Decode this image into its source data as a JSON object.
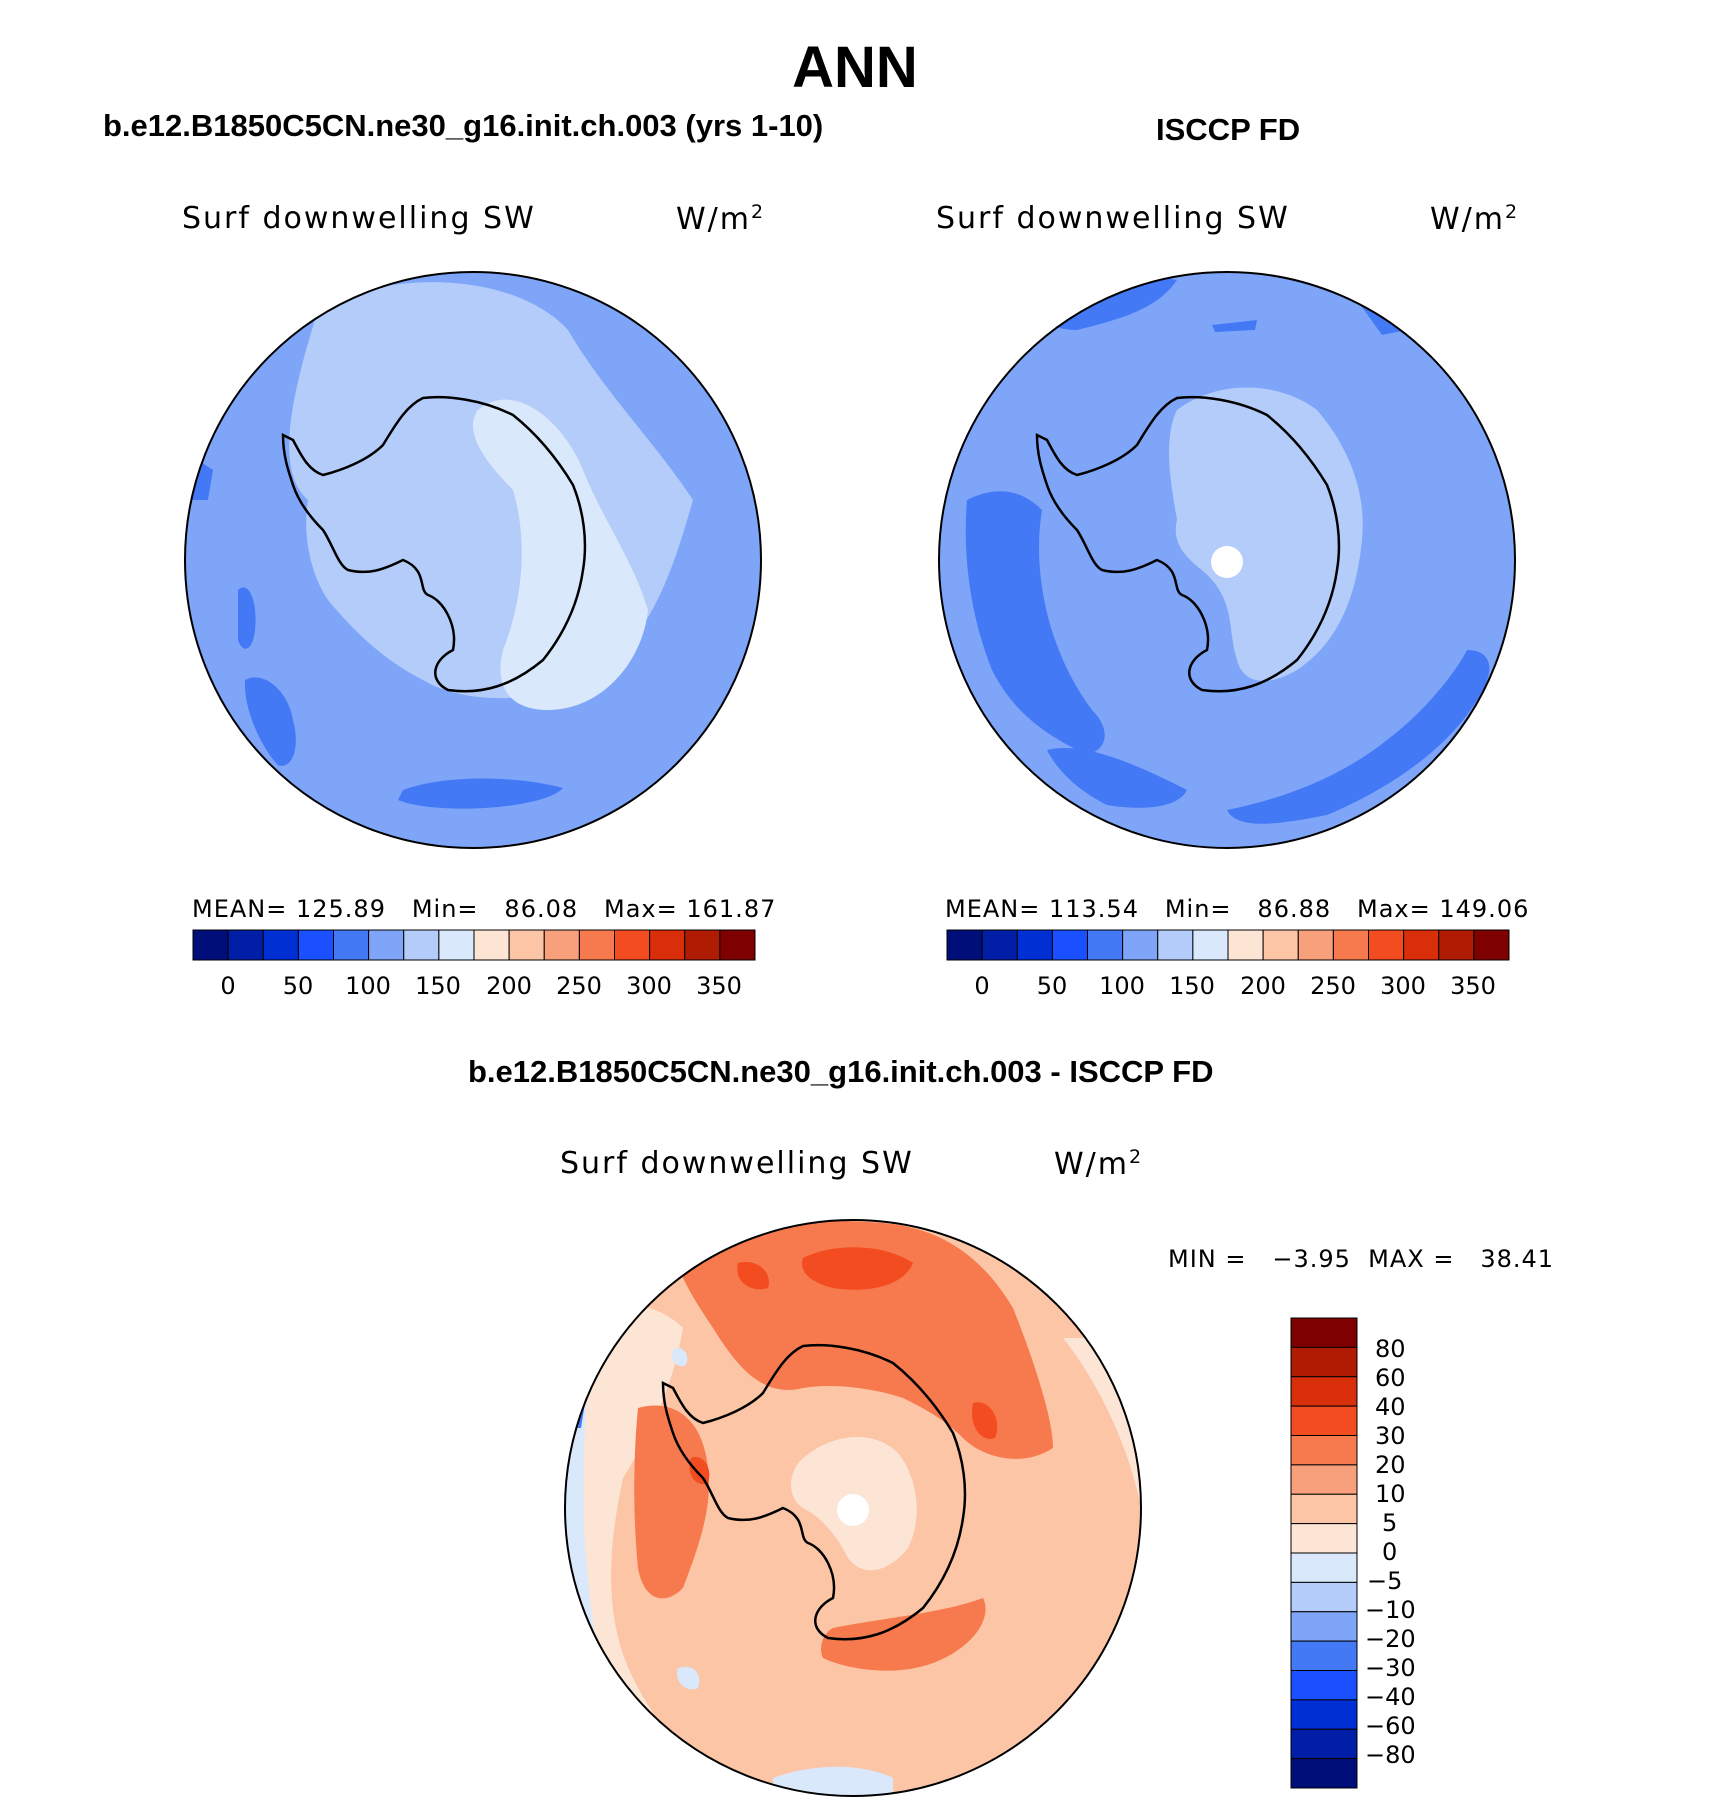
{
  "title": "ANN",
  "panels": [
    {
      "heading": "b.e12.B1850C5CN.ne30_g16.init.ch.003 (yrs 1-10)",
      "variable": "Surf downwelling SW",
      "units_base": "W/m",
      "units_exp": "2",
      "stats": "MEAN= 125.89   Min=   86.08   Max= 161.87",
      "colorbar_ticks": [
        "0",
        "50",
        "100",
        "150",
        "200",
        "250",
        "300",
        "350"
      ],
      "mean": 125.89,
      "min": 86.08,
      "max": 161.87
    },
    {
      "heading": "ISCCP FD",
      "variable": "Surf downwelling SW",
      "units_base": "W/m",
      "units_exp": "2",
      "stats": "MEAN= 113.54   Min=   86.88   Max= 149.06",
      "colorbar_ticks": [
        "0",
        "50",
        "100",
        "150",
        "200",
        "250",
        "300",
        "350"
      ],
      "mean": 113.54,
      "min": 86.88,
      "max": 149.06
    },
    {
      "heading": "b.e12.B1850C5CN.ne30_g16.init.ch.003 - ISCCP FD",
      "variable": "Surf downwelling SW",
      "units_base": "W/m",
      "units_exp": "2",
      "stats": "MIN =   −3.95  MAX =   38.41",
      "colorbar_ticks": [
        "80",
        "60",
        "40",
        "30",
        "20",
        "10",
        "5",
        "0",
        "−5",
        "−10",
        "−20",
        "−30",
        "−40",
        "−60",
        "−80"
      ],
      "min": -3.95,
      "max": 38.41
    }
  ],
  "colors": {
    "abs_scale": [
      "#000e7a",
      "#001fa6",
      "#0030d3",
      "#1a50ff",
      "#4479f6",
      "#7ea5f8",
      "#b4ccfa",
      "#d9e8fb",
      "#fde5d6",
      "#fbc5a6",
      "#f89f7b",
      "#f67a4d",
      "#f24c20",
      "#d92e0a",
      "#b01c03",
      "#7f0000"
    ],
    "diff_scale": [
      "#000e7a",
      "#001fa6",
      "#0030d3",
      "#1a50ff",
      "#4479f6",
      "#7ea5f8",
      "#b4ccfa",
      "#d9e8fb",
      "#fde5d6",
      "#fbc5a6",
      "#f89f7b",
      "#f67a4d",
      "#f24c20",
      "#d92e0a",
      "#b01c03",
      "#7f0000"
    ]
  }
}
